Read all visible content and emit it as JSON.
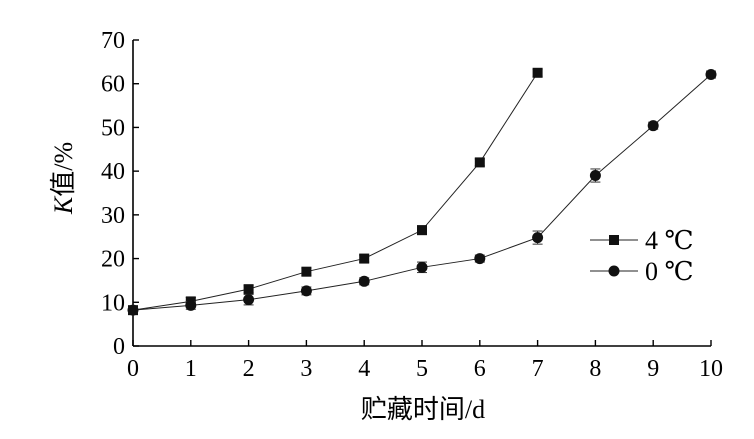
{
  "chart_data": {
    "type": "line",
    "title": "",
    "xlabel": "贮藏时间/d",
    "ylabel": "K值/%",
    "ylabel_italic_part": "K",
    "ylabel_rest": "值/%",
    "xlim": [
      0,
      10
    ],
    "ylim": [
      0,
      70
    ],
    "x_ticks": [
      0,
      1,
      2,
      3,
      4,
      5,
      6,
      7,
      8,
      9,
      10
    ],
    "y_ticks": [
      0,
      10,
      20,
      30,
      40,
      50,
      60,
      70
    ],
    "grid": false,
    "legend_position": "right",
    "series": [
      {
        "name": "4 ℃",
        "marker": "square",
        "x": [
          0,
          1,
          2,
          3,
          4,
          5,
          6,
          7
        ],
        "y": [
          8.2,
          10.2,
          13.0,
          17.0,
          20.0,
          26.5,
          42.0,
          62.5
        ],
        "error": [
          0.6,
          0.9,
          0.8,
          0.8,
          0.8,
          1.0,
          0.8,
          0.8
        ]
      },
      {
        "name": "0 ℃",
        "marker": "circle",
        "x": [
          0,
          1,
          2,
          3,
          4,
          5,
          6,
          7,
          8,
          9,
          10
        ],
        "y": [
          8.2,
          9.3,
          10.6,
          12.6,
          14.8,
          18.0,
          20.0,
          24.8,
          39.0,
          50.4,
          62.1
        ],
        "error": [
          0.6,
          0.9,
          1.2,
          0.9,
          0.8,
          1.2,
          0.8,
          1.5,
          1.5,
          0.8,
          0.8
        ]
      }
    ]
  }
}
